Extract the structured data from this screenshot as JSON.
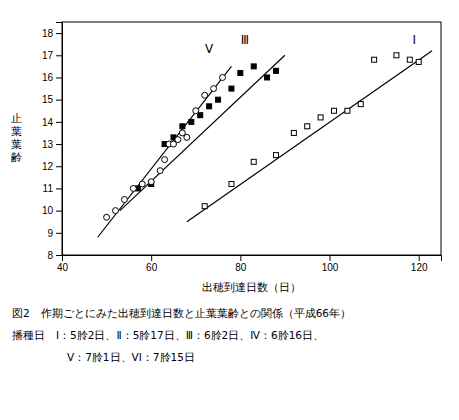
{
  "chart_data": {
    "type": "scatter",
    "xlabel": "出穂到達日数（日）",
    "ylabel": "止\n葉\n葉\n齢",
    "xlim": [
      40,
      125
    ],
    "ylim": [
      8,
      18.5
    ],
    "xticks": [
      40,
      60,
      80,
      100,
      120
    ],
    "yticks": [
      8,
      9,
      10,
      11,
      12,
      13,
      14,
      15,
      16,
      17,
      18
    ],
    "grid": false,
    "series": [
      {
        "name": "I",
        "marker": "square-open",
        "color": "black",
        "x": [
          72,
          78,
          83,
          88,
          92,
          95,
          98,
          101,
          104,
          107,
          110,
          115,
          118,
          120
        ],
        "values": [
          10.2,
          11.2,
          12.2,
          12.5,
          13.5,
          13.8,
          14.2,
          14.5,
          14.5,
          14.8,
          16.8,
          17.0,
          16.8,
          16.7
        ],
        "line_x": [
          68,
          123
        ],
        "line_y": [
          9.5,
          17.2
        ],
        "label_x": 119,
        "label_y": 17.5
      },
      {
        "name": "Ⅲ",
        "marker": "square",
        "color": "black",
        "x": [
          57,
          60,
          63,
          65,
          67,
          69,
          71,
          73,
          75,
          78,
          80,
          83,
          86,
          88
        ],
        "values": [
          11.0,
          11.2,
          13.0,
          13.3,
          13.8,
          14.0,
          14.3,
          14.7,
          15.0,
          15.5,
          16.2,
          16.5,
          16.0,
          16.3
        ],
        "line_x": [
          53,
          90
        ],
        "line_y": [
          10.0,
          17.0
        ],
        "label_x": 81,
        "label_y": 17.5
      },
      {
        "name": "V",
        "marker": "circle-open",
        "color": "black",
        "x": [
          50,
          52,
          54,
          56,
          58,
          60,
          62,
          63,
          64,
          65,
          66,
          67,
          68,
          70,
          72,
          74,
          76
        ],
        "values": [
          9.7,
          10.0,
          10.5,
          11.0,
          11.2,
          11.3,
          11.8,
          12.3,
          13.0,
          13.0,
          13.2,
          13.5,
          13.3,
          14.5,
          15.2,
          15.5,
          16.0
        ],
        "line_x": [
          48,
          78
        ],
        "line_y": [
          8.8,
          16.5
        ],
        "label_x": 73,
        "label_y": 17.1
      }
    ],
    "caption": [
      "図2　作期ごとにみた出穂到達日数と止葉葉齢との関係（平成66年）",
      "播種日　Ⅰ：5朎2日、Ⅱ：5朎17日、Ⅲ：6朎2日、Ⅳ：6朎16日、",
      "　　　　　V：7朎1日、VI：7朎15日"
    ]
  }
}
